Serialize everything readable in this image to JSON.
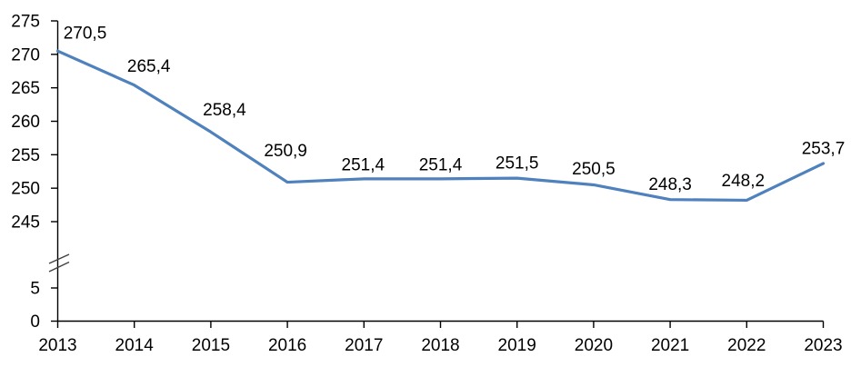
{
  "chart_data": {
    "type": "line",
    "title": "",
    "categories": [
      "2013",
      "2014",
      "2015",
      "2016",
      "2017",
      "2018",
      "2019",
      "2020",
      "2021",
      "2022",
      "2023"
    ],
    "series": [
      {
        "values": [
          270.5,
          265.4,
          258.4,
          250.9,
          251.4,
          251.4,
          251.5,
          250.5,
          248.3,
          248.2,
          253.7
        ]
      }
    ],
    "point_labels": [
      "270,5",
      "265,4",
      "258,4",
      "250,9",
      "251,4",
      "251,4",
      "251,5",
      "250,5",
      "248,3",
      "248,2",
      "253,7"
    ],
    "y_axis": {
      "upper_ticks": [
        275,
        270,
        265,
        260,
        255,
        250,
        245
      ],
      "lower_ticks": [
        5,
        0
      ],
      "upper_range": [
        245,
        275
      ],
      "lower_range": [
        0,
        5
      ],
      "axis_break": true
    },
    "xlabel": "",
    "ylabel": "",
    "grid": false,
    "legend": false,
    "colors": {
      "line": "#4F81BD",
      "axis": "#000000",
      "text": "#000000",
      "break_mark": "#404040",
      "background": "#FFFFFF"
    }
  }
}
